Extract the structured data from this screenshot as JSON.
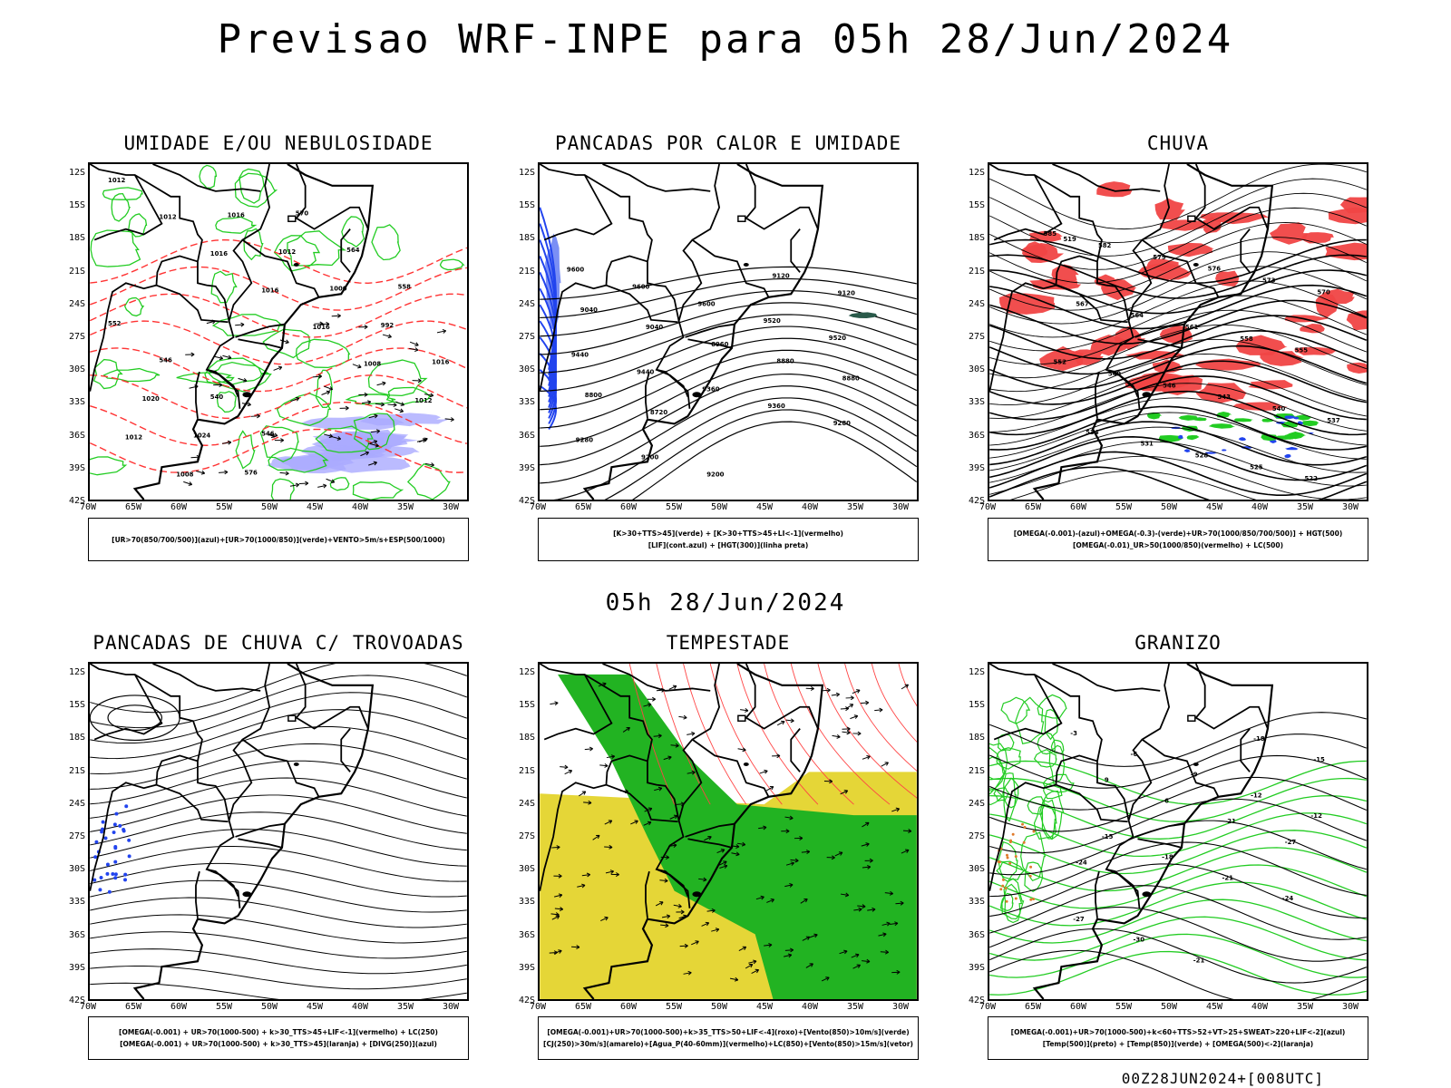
{
  "title": "Previsao WRF-INPE  para 05h 28/Jun/2024",
  "mid_title": "05h 28/Jun/2024",
  "footer": "00Z28JUN2024+[008UTC]",
  "lat_labels": [
    "12S",
    "15S",
    "18S",
    "21S",
    "24S",
    "27S",
    "30S",
    "33S",
    "36S",
    "39S",
    "42S"
  ],
  "lon_labels": [
    "70W",
    "65W",
    "60W",
    "55W",
    "50W",
    "45W",
    "40W",
    "35W",
    "30W"
  ],
  "panels": [
    {
      "title": "UMIDADE E/OU NEBULOSIDADE",
      "legend": [
        "[UR>70(850/700/500)](azul)+[UR>70(1000/850)](verde)+VENTO>5m/s+ESP(500/1000)"
      ],
      "labels": [
        "1012",
        "1012",
        "1016",
        "1016",
        "1016",
        "1008",
        "1012",
        "1012",
        "1008",
        "1016",
        "1012",
        "1000",
        "992",
        "1016",
        "1020",
        "1024",
        "576",
        "570",
        "564",
        "558",
        "552",
        "546",
        "540",
        "546"
      ]
    },
    {
      "title": "PANCADAS POR CALOR E UMIDADE",
      "legend": [
        "[K>30+TTS>45](verde)  +  [K>30+TTS>45+LI<-1](vermelho)",
        "[LIF](cont.azul)  +  [HGT(300)](linha preta)"
      ],
      "labels": [
        "9600",
        "9600",
        "9600",
        "9520",
        "9520",
        "9440",
        "9440",
        "9360",
        "9360",
        "9280",
        "9280",
        "9200",
        "9200",
        "9120",
        "9120",
        "9040",
        "9040",
        "8960",
        "8880",
        "8880",
        "8800",
        "8720"
      ]
    },
    {
      "title": "CHUVA",
      "legend": [
        "[OMEGA(-0.001)-(azul)+OMEGA(-0.3)-(verde)+UR>70(1000/850/700/500)]  +  HGT(500)",
        "[OMEGA(-0.01)_UR>50(1000/850)(vermelho)  +  LC(500)"
      ],
      "labels": [
        "585",
        "582",
        "579",
        "576",
        "573",
        "570",
        "567",
        "564",
        "561",
        "558",
        "555",
        "552",
        "549",
        "546",
        "543",
        "540",
        "537",
        "534",
        "531",
        "528",
        "525",
        "522",
        "519"
      ]
    },
    {
      "title": "PANCADAS DE CHUVA C/ TROVOADAS",
      "legend": [
        "[OMEGA(-0.001)  +  UR>70(1000-500)  +  k>30_TTS>45+LIF<-1](vermelho)  +  LC(250)",
        "[OMEGA(-0.001)  +  UR>70(1000-500)  +  k>30_TTS>45](laranja)  +  [DIVG(250)](azul)"
      ],
      "labels": []
    },
    {
      "title": "TEMPESTADE",
      "legend": [
        "[OMEGA(-0.001)+UR>70(1000-500)+k>35_TTS>50+LIF<-4](roxo)+[Vento(850)>10m/s](verde)",
        "[CJ(250)>30m/s](amarelo)+[Agua_P(40-60mm)](vermelho)+LC(850)+[Vento(850)>15m/s](vetor)"
      ],
      "labels": []
    },
    {
      "title": "GRANIZO",
      "legend": [
        "[OMEGA(-0.001)+UR>70(1000-500)+k<60+TTS>52+VT>25+SWEAT>220+LIF<-2](azul)",
        "[Temp(500)](preto)  +  [Temp(850)](verde)  +  [OMEGA(500)<-2](laranja)"
      ],
      "labels": [
        "-3",
        "-6",
        "-9",
        "-12",
        "-12",
        "-15",
        "-18",
        "-21",
        "-24",
        "-27",
        "-30",
        "-21",
        "-18",
        "-15",
        "9",
        "6",
        "-21",
        "-27",
        "-24"
      ]
    }
  ],
  "colors": {
    "humidity_green": "#22cc22",
    "humidity_blue": "#aaaaff",
    "thickness_red": "#ff3333",
    "lif_blue": "#2244ee",
    "rain_red": "#f04444",
    "jet_yellow": "#e5d637",
    "wind_green": "#22b322",
    "hail_orange": "#e07a2a"
  }
}
